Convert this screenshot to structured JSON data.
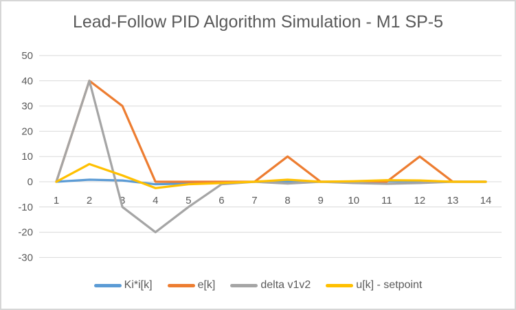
{
  "chart_data": {
    "type": "line",
    "title": "Lead-Follow PID Algorithm Simulation - M1 SP-5",
    "xlabel": "",
    "ylabel": "",
    "categories": [
      "1",
      "2",
      "3",
      "4",
      "5",
      "6",
      "7",
      "8",
      "9",
      "10",
      "11",
      "12",
      "13",
      "14"
    ],
    "series": [
      {
        "name": "Ki*i[k]",
        "color": "#5B9BD5",
        "values": [
          0,
          0.8,
          0.5,
          -1,
          -0.7,
          -0.3,
          0,
          0.2,
          0,
          0,
          0.2,
          0.2,
          0,
          0
        ]
      },
      {
        "name": "e[k]",
        "color": "#ED7D31",
        "values": [
          0,
          40,
          30,
          0,
          0,
          0,
          0,
          10,
          0,
          0,
          0,
          10,
          0,
          0
        ]
      },
      {
        "name": "delta v1v2",
        "color": "#A5A5A5",
        "values": [
          0,
          40,
          -10,
          -20,
          -10,
          -1,
          0,
          -0.7,
          0,
          -0.5,
          -0.8,
          -0.5,
          0,
          0
        ]
      },
      {
        "name": "u[k] - setpoint",
        "color": "#FFC000",
        "values": [
          0,
          7,
          2.5,
          -2.5,
          -1,
          -0.5,
          0,
          0.8,
          0,
          0.2,
          0.6,
          0.5,
          0,
          0
        ]
      }
    ],
    "ylim": [
      -30,
      50
    ],
    "ytick_step": 10,
    "yticks": [
      "-30",
      "-20",
      "-10",
      "0",
      "10",
      "20",
      "30",
      "40",
      "50"
    ],
    "grid": true,
    "legend_position": "bottom"
  },
  "colors": {
    "grid": "#D9D9D9",
    "axis_text": "#595959",
    "title_text": "#595959",
    "background": "#FFFFFF",
    "frame_border": "#D6D6D6"
  }
}
